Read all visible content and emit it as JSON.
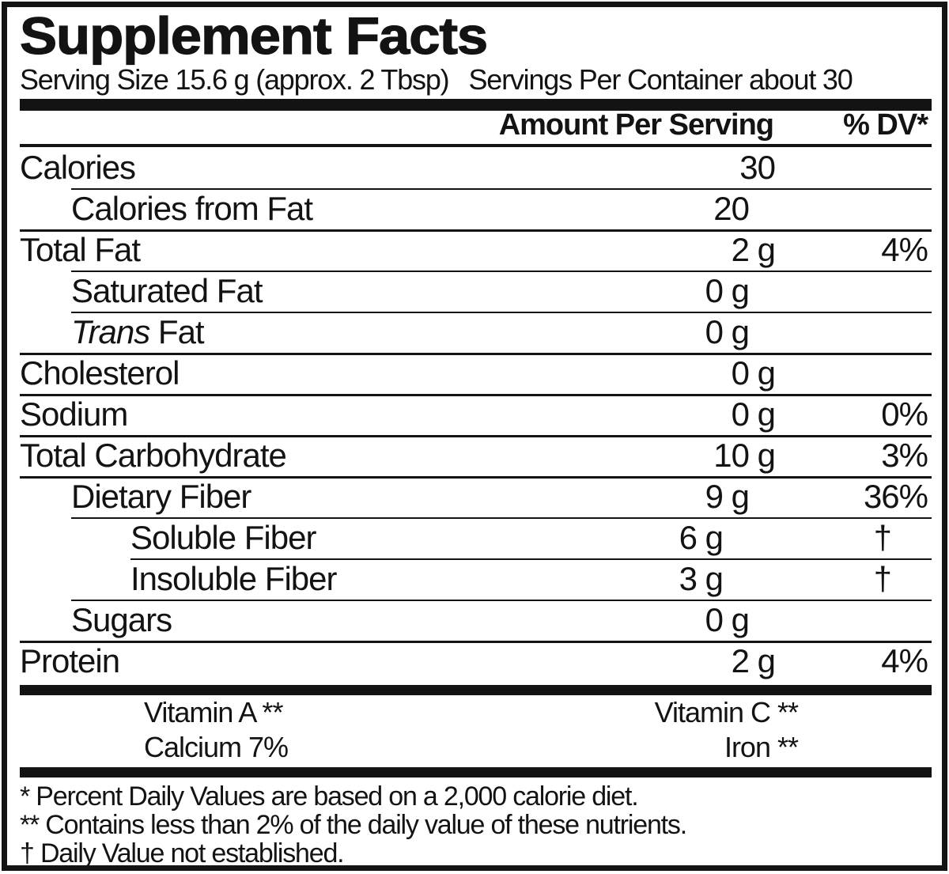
{
  "title": "Supplement Facts",
  "serving": {
    "serving_size": "Serving Size 15.6 g (approx. 2 Tbsp)",
    "servings_per_container": "Servings Per Container about 30"
  },
  "columns": {
    "amount": "Amount Per Serving",
    "dv": "% DV*"
  },
  "rows": [
    {
      "label": "Calories",
      "amount": "30",
      "dv": "",
      "indent": 0,
      "sep_above": null
    },
    {
      "label": "Calories from Fat",
      "amount": "20",
      "dv": "",
      "indent": 1,
      "sep_above": 1
    },
    {
      "label": "Total Fat",
      "amount": "2 g",
      "dv": "4%",
      "indent": 0,
      "sep_above": 0
    },
    {
      "label": "Saturated Fat",
      "amount": "0 g",
      "dv": "",
      "indent": 1,
      "sep_above": 1
    },
    {
      "label": "Trans Fat",
      "amount": "0 g",
      "dv": "",
      "indent": 1,
      "sep_above": 1,
      "italic_prefix_words": 1
    },
    {
      "label": "Cholesterol",
      "amount": "0 g",
      "dv": "",
      "indent": 0,
      "sep_above": 0
    },
    {
      "label": "Sodium",
      "amount": "0 g",
      "dv": "0%",
      "indent": 0,
      "sep_above": 0
    },
    {
      "label": "Total Carbohydrate",
      "amount": "10 g",
      "dv": "3%",
      "indent": 0,
      "sep_above": 0
    },
    {
      "label": "Dietary Fiber",
      "amount": "9 g",
      "dv": "36%",
      "indent": 1,
      "sep_above": 0
    },
    {
      "label": "Soluble Fiber",
      "amount": "6 g",
      "dv": "†",
      "indent": 2,
      "sep_above": 1
    },
    {
      "label": "Insoluble Fiber",
      "amount": "3 g",
      "dv": "†",
      "indent": 2,
      "sep_above": 2
    },
    {
      "label": "Sugars",
      "amount": "0 g",
      "dv": "",
      "indent": 1,
      "sep_above": 1
    },
    {
      "label": "Protein",
      "amount": "2 g",
      "dv": "4%",
      "indent": 0,
      "sep_above": 0
    }
  ],
  "micronutrients": [
    {
      "left": "Vitamin A **",
      "right": "Vitamin C **"
    },
    {
      "left": "Calcium 7%",
      "right": "Iron **"
    }
  ],
  "footnotes": [
    "* Percent Daily Values are based on a 2,000 calorie diet.",
    "** Contains less than 2% of the daily value of these nutrients.",
    "† Daily Value not established."
  ],
  "colors": {
    "ink": "#131313",
    "background": "#ffffff"
  }
}
